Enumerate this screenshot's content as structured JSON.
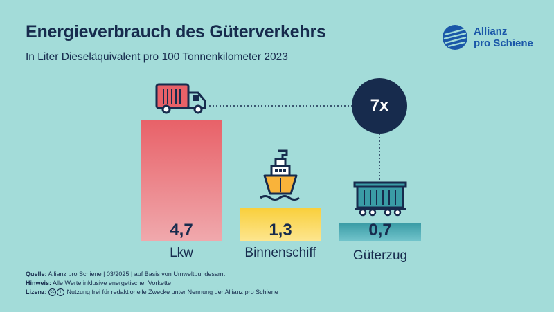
{
  "header": {
    "title": "Energieverbrauch des Güterverkehrs",
    "subtitle": "In Liter Dieseläquivalent pro 100 Tonnenkilometer 2023"
  },
  "brand": {
    "line1": "Allianz",
    "line2": "pro Schiene"
  },
  "chart_data": {
    "type": "bar",
    "title": "Energieverbrauch des Güterverkehrs",
    "subtitle": "In Liter Dieseläquivalent pro 100 Tonnenkilometer 2023",
    "ylabel": "Liter Dieseläquivalent pro 100 Tonnenkilometer",
    "categories": [
      "Lkw",
      "Binnenschiff",
      "Güterzug"
    ],
    "values": [
      4.7,
      1.3,
      0.7
    ],
    "value_labels": [
      "4,7",
      "1,3",
      "0,7"
    ],
    "icons": [
      "truck-icon",
      "ship-icon",
      "freight-wagon-icon"
    ],
    "colors": {
      "lkw_top": "#e86168",
      "lkw_bottom": "#f0a9ad",
      "schiff_top": "#f9cf3b",
      "schiff_bottom": "#fde690",
      "zug_top": "#3a9ca6",
      "zug_bottom": "#74c5cc"
    },
    "annotation": "7x",
    "ylim": [
      0,
      5
    ]
  },
  "footer": {
    "source_label": "Quelle:",
    "source_text": "Allianz pro Schiene | 03/2025 | auf Basis von Umweltbundesamt",
    "note_label": "Hinweis:",
    "note_text": "Alle Werte inklusive energetischer Vorkette",
    "license_label": "Lizenz:",
    "license_text": "Nutzung frei für redaktionelle Zwecke unter Nennung der Allianz pro Schiene"
  }
}
